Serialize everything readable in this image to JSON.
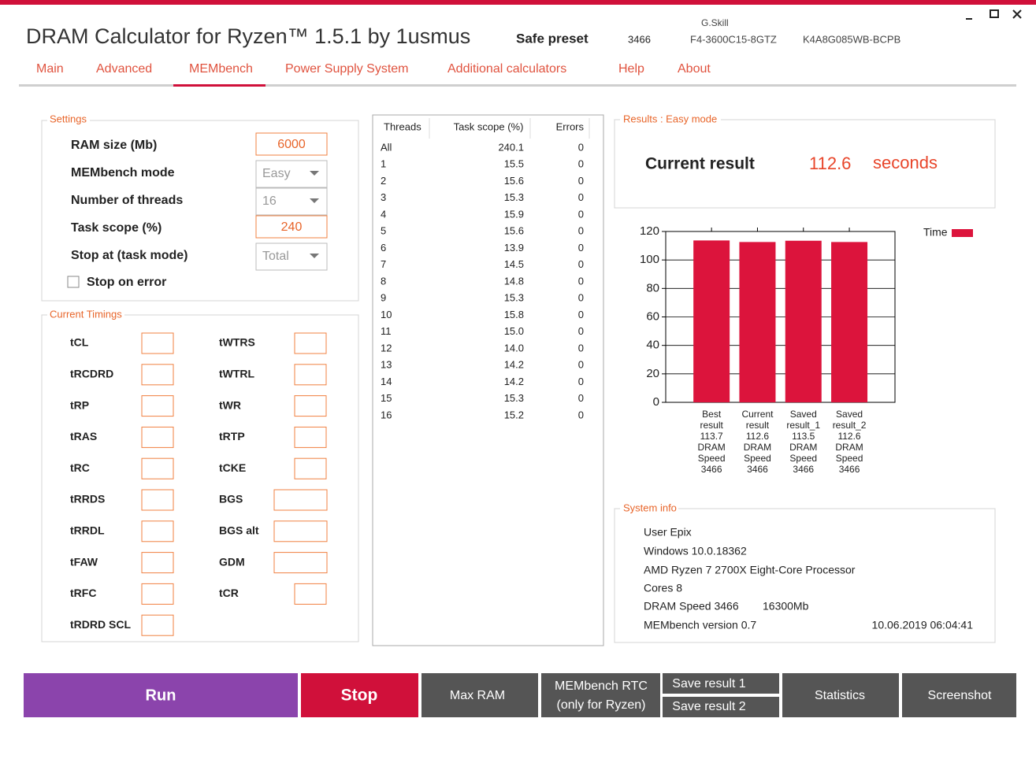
{
  "header": {
    "title": "DRAM Calculator for Ryzen™ 1.5.1 by 1usmus",
    "preset": "Safe preset",
    "speed": "3466",
    "vendor": "G.Skill",
    "part_number": "F4-3600C15-8GTZ",
    "chip": "K4A8G085WB-BCPB"
  },
  "tabs": [
    "Main",
    "Advanced",
    "MEMbench",
    "Power Supply System",
    "Additional calculators",
    "Help",
    "About"
  ],
  "settings": {
    "legend": "Settings",
    "fields": [
      {
        "label": "RAM size (Mb)",
        "value": "6000",
        "kind": "input"
      },
      {
        "label": "MEMbench mode",
        "value": "Easy",
        "kind": "dropdown"
      },
      {
        "label": "Number of threads",
        "value": "16",
        "kind": "dropdown"
      },
      {
        "label": "Task scope (%)",
        "value": "240",
        "kind": "input"
      },
      {
        "label": "Stop at (task mode)",
        "value": "Total",
        "kind": "dropdown"
      }
    ],
    "checkbox": "Stop on error"
  },
  "timings": {
    "legend": "Current Timings",
    "left": [
      "tCL",
      "tRCDRD",
      "tRP",
      "tRAS",
      "tRC",
      "tRRDS",
      "tRRDL",
      "tFAW",
      "tRFC",
      "tRDRD SCL"
    ],
    "right": [
      "tWTRS",
      "tWTRL",
      "tWR",
      "tRTP",
      "tCKE",
      "BGS",
      "BGS alt",
      "GDM",
      "tCR"
    ]
  },
  "threads_table": {
    "headers": [
      "Threads",
      "Task scope (%)",
      "Errors"
    ],
    "rows": [
      [
        "All",
        "240.1",
        "0"
      ],
      [
        "1",
        "15.5",
        "0"
      ],
      [
        "2",
        "15.6",
        "0"
      ],
      [
        "3",
        "15.3",
        "0"
      ],
      [
        "4",
        "15.9",
        "0"
      ],
      [
        "5",
        "15.6",
        "0"
      ],
      [
        "6",
        "13.9",
        "0"
      ],
      [
        "7",
        "14.5",
        "0"
      ],
      [
        "8",
        "14.8",
        "0"
      ],
      [
        "9",
        "15.3",
        "0"
      ],
      [
        "10",
        "15.8",
        "0"
      ],
      [
        "11",
        "15.0",
        "0"
      ],
      [
        "12",
        "14.0",
        "0"
      ],
      [
        "13",
        "14.2",
        "0"
      ],
      [
        "14",
        "14.2",
        "0"
      ],
      [
        "15",
        "15.3",
        "0"
      ],
      [
        "16",
        "15.2",
        "0"
      ]
    ]
  },
  "results": {
    "legend": "Results : Easy mode",
    "label": "Current result",
    "value": "112.6",
    "unit": "seconds"
  },
  "chart_data": {
    "type": "bar",
    "categories": [
      "Best result 113.7 DRAM Speed 3466",
      "Current result 112.6 DRAM Speed 3466",
      "Saved result_1 113.5 DRAM Speed 3466",
      "Saved result_2 112.6 DRAM Speed 3466"
    ],
    "series": [
      {
        "name": "Time",
        "color": "#dc143c",
        "values": [
          113.7,
          112.6,
          113.5,
          112.6
        ]
      }
    ],
    "ylim": [
      0,
      120
    ],
    "yticks": [
      0,
      20,
      40,
      60,
      80,
      100,
      120
    ],
    "grid": true,
    "legend": "top-right"
  },
  "system_info": {
    "legend": "System info",
    "user": "User Epix",
    "os": "Windows 10.0.18362",
    "cpu": "AMD Ryzen 7 2700X Eight-Core Processor",
    "cores": "Cores 8",
    "dram_speed": "DRAM Speed 3466",
    "memory": "16300Mb",
    "version": "MEMbench version 0.7",
    "timestamp": "10.06.2019 06:04:41"
  },
  "buttons": {
    "run": "Run",
    "stop": "Stop",
    "max_ram": "Max RAM",
    "rtc": [
      "MEMbench RTC",
      "(only for Ryzen)"
    ],
    "save1": "Save result 1",
    "save2": "Save result 2",
    "statistics": "Statistics",
    "screenshot": "Screenshot"
  }
}
